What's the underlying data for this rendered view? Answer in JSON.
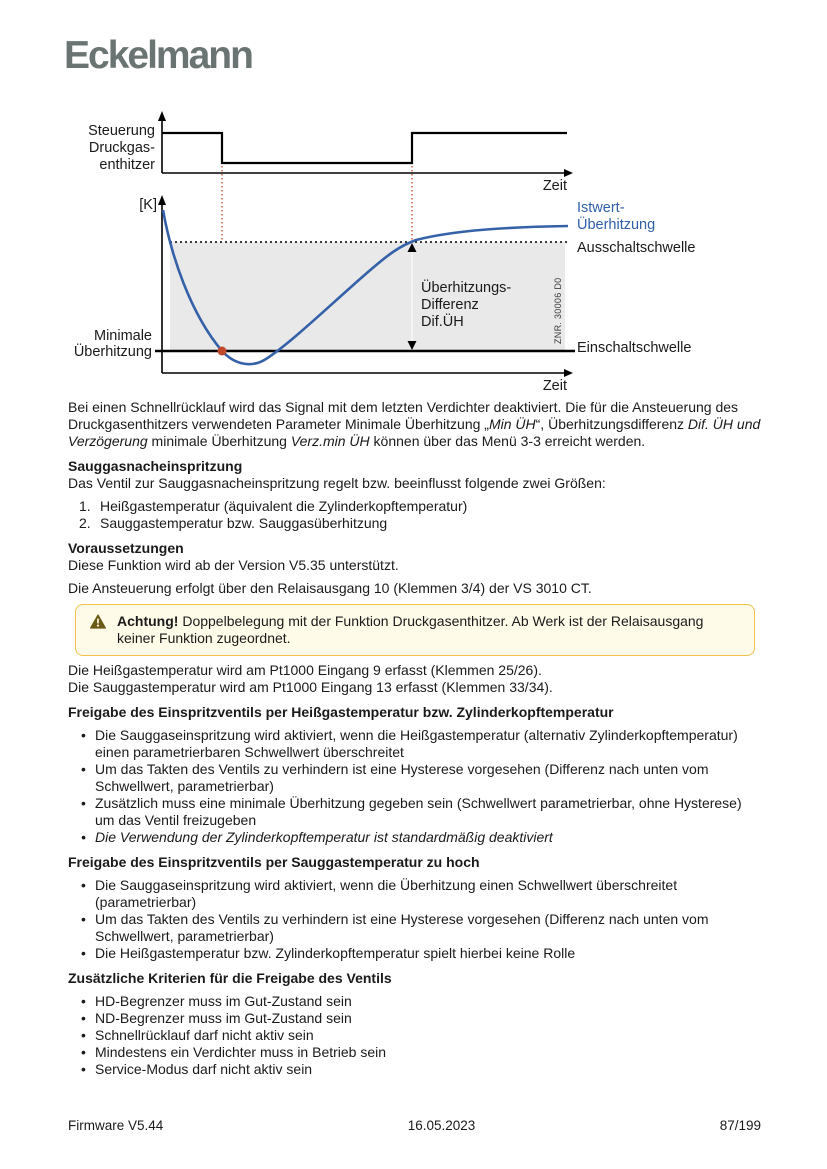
{
  "logo": {
    "text": "Eckelmann"
  },
  "diagram": {
    "signal_label_lines": [
      "Steuerung",
      "Druckgas-",
      "enthitzer"
    ],
    "time_label_top": "Zeit",
    "time_label_bottom": "Zeit",
    "y_axis_label": "[K]",
    "min_overheat_lines": [
      "Minimale",
      "Überhitzung"
    ],
    "diff_lines": [
      "Überhitzungs-",
      "Differenz",
      "Dif.ÜH"
    ],
    "istwert_lines": [
      "Istwert-",
      "Überhitzung"
    ],
    "ausschaltschwelle": "Ausschaltschwelle",
    "einschaltschwelle": "Einschaltschwelle",
    "znr": "ZNR. 30006 D0",
    "colors": {
      "curve": "#3561a8",
      "marker": "#c14a2e",
      "dashed_guides": "#c44a2c",
      "band": "#e9e9e9",
      "blue_label": "#2f5fa8"
    }
  },
  "content": {
    "p1": [
      {
        "t": "Bei einen Schnellrücklauf wird das Signal mit dem letzten Verdichter deaktiviert. Die für die Ansteuerung des Druckgasenthitzers verwendeten Parameter Minimale Überhitzung „"
      },
      {
        "t": "Min ÜH",
        "i": true
      },
      {
        "t": "“, Überhitzungsdifferenz "
      },
      {
        "t": "Dif. ÜH und Verzögerung",
        "i": true
      },
      {
        "t": " minimale Überhitzung "
      },
      {
        "t": "Verz.min ÜH",
        "i": true
      },
      {
        "t": " können über das Menü 3-3 erreicht werden."
      }
    ],
    "sec_sauggas": {
      "heading": "Sauggasnacheinspritzung",
      "intro": "Das Ventil zur Sauggasnacheinspritzung regelt bzw. beeinflusst folgende zwei Größen:",
      "items": [
        "Heißgastemperatur (äquivalent die Zylinderkopftemperatur)",
        "Sauggastemperatur bzw. Sauggasüberhitzung"
      ]
    },
    "sec_voraussetzungen": {
      "heading": "Voraussetzungen",
      "p1": "Diese Funktion wird ab der Version V5.35 unterstützt.",
      "p2": "Die Ansteuerung erfolgt über den Relaisausgang 10 (Klemmen 3/4) der VS 3010 CT."
    },
    "warning": {
      "segments": [
        {
          "t": "Achtung!",
          "b": true
        },
        {
          "t": " Doppelbelegung mit der Funktion Druckgasenthitzer. Ab Werk ist der Relaisausgang keiner Funktion zugeordnet."
        }
      ]
    },
    "p_heissgas": "Die Heißgastemperatur wird am Pt1000 Eingang 9 erfasst (Klemmen 25/26).",
    "p_sauggas": "Die Sauggastemperatur wird am Pt1000 Eingang 13 erfasst (Klemmen 33/34).",
    "sec_freigabe_heiss": {
      "heading": "Freigabe des Einspritzventils per Heißgastemperatur bzw. Zylinderkopftemperatur",
      "bullets": [
        "Die Sauggaseinspritzung wird aktiviert, wenn die Heißgastemperatur (alternativ Zylinderkopftemperatur) einen parametrierbaren Schwellwert überschreitet",
        "Um das Takten des Ventils zu verhindern ist eine Hysterese vorgesehen (Differenz nach unten vom Schwellwert, parametrierbar)",
        "Zusätzlich muss eine minimale Überhitzung gegeben sein (Schwellwert parametrierbar, ohne Hysterese) um das Ventil freizugeben",
        {
          "t": "Die Verwendung der Zylinderkopftemperatur ist standardmäßig deaktiviert",
          "i": true
        }
      ]
    },
    "sec_freigabe_saug": {
      "heading": "Freigabe des Einspritzventils per Sauggastemperatur zu hoch",
      "bullets": [
        "Die Sauggaseinspritzung wird aktiviert, wenn die Überhitzung einen Schwellwert überschreitet (parametrierbar)",
        "Um das Takten des Ventils zu verhindern ist eine Hysterese vorgesehen (Differenz nach unten vom Schwellwert, parametrierbar)",
        "Die Heißgastemperatur bzw. Zylinderkopftemperatur spielt hierbei keine Rolle"
      ]
    },
    "sec_kriterien": {
      "heading": "Zusätzliche Kriterien für die Freigabe des Ventils",
      "bullets": [
        "HD-Begrenzer muss im Gut-Zustand sein",
        "ND-Begrenzer muss im Gut-Zustand sein",
        "Schnellrücklauf darf nicht aktiv sein",
        "Mindestens ein Verdichter muss in Betrieb sein",
        "Service-Modus darf nicht aktiv sein"
      ]
    }
  },
  "footer": {
    "left": "Firmware V5.44",
    "center": "16.05.2023",
    "right": "87/199"
  }
}
